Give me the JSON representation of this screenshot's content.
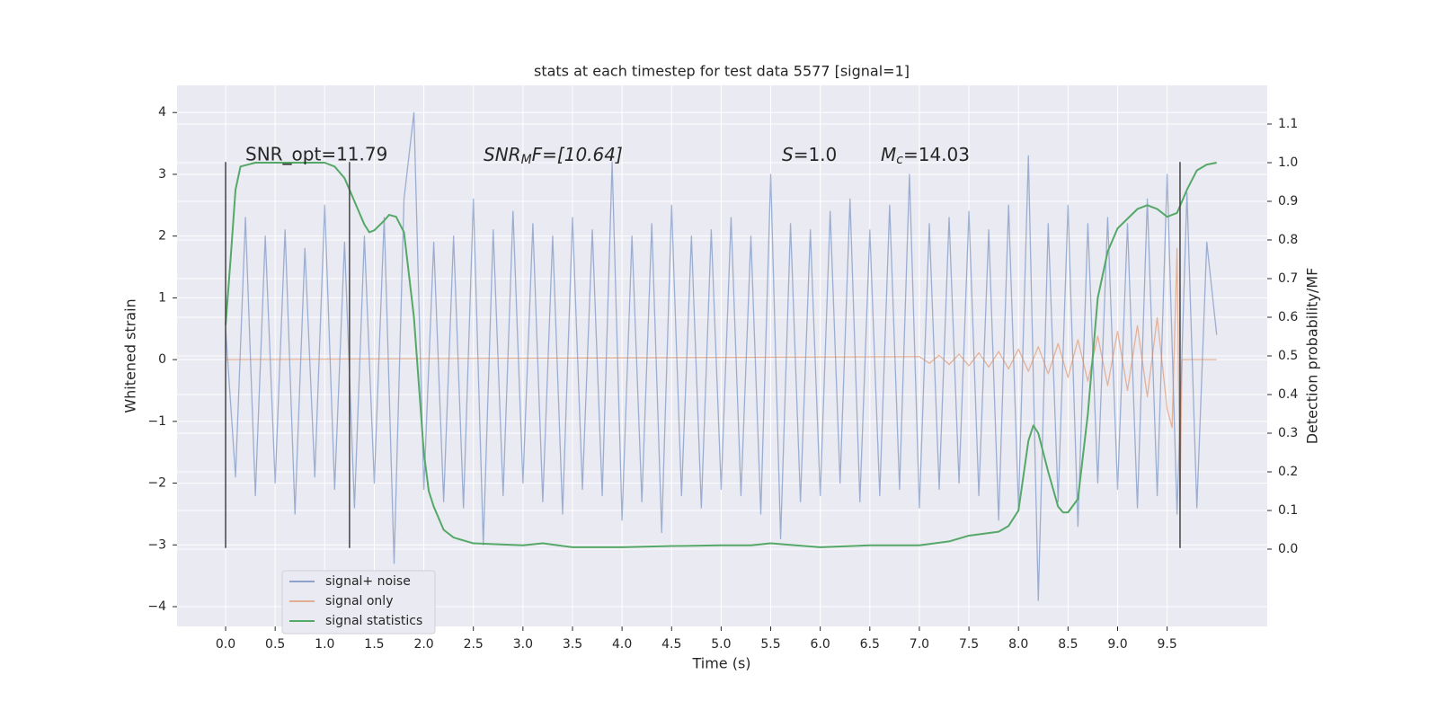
{
  "chart_data": {
    "type": "line",
    "title": "stats at each timestep for test data 5577 [signal=1]",
    "xlabel": "Time (s)",
    "ylabel": "Whitened strain",
    "y2label": "Detection probability/MF",
    "xlim": [
      -0.49,
      10.51
    ],
    "ylim": [
      -4.32,
      4.44
    ],
    "y2lim": [
      -0.2,
      1.2
    ],
    "xticks": [
      {
        "value": 0,
        "label": "0.0"
      },
      {
        "value": 0.5,
        "label": "0.5"
      },
      {
        "value": 1,
        "label": "1.0"
      },
      {
        "value": 1.5,
        "label": "1.5"
      },
      {
        "value": 2,
        "label": "2.0"
      },
      {
        "value": 2.5,
        "label": "2.5"
      },
      {
        "value": 3,
        "label": "3.0"
      },
      {
        "value": 3.5,
        "label": "3.5"
      },
      {
        "value": 4,
        "label": "4.0"
      },
      {
        "value": 4.5,
        "label": "4.5"
      },
      {
        "value": 5,
        "label": "5.0"
      },
      {
        "value": 5.5,
        "label": "5.5"
      },
      {
        "value": 6,
        "label": "6.0"
      },
      {
        "value": 6.5,
        "label": "6.5"
      },
      {
        "value": 7,
        "label": "7.0"
      },
      {
        "value": 7.5,
        "label": "7.5"
      },
      {
        "value": 8,
        "label": "8.0"
      },
      {
        "value": 8.5,
        "label": "8.5"
      },
      {
        "value": 9,
        "label": "9.0"
      },
      {
        "value": 9.5,
        "label": "9.5"
      }
    ],
    "yticks": [
      {
        "value": -4,
        "label": "−4"
      },
      {
        "value": -3,
        "label": "−3"
      },
      {
        "value": -2,
        "label": "−2"
      },
      {
        "value": -1,
        "label": "−1"
      },
      0,
      1,
      2,
      3,
      4
    ],
    "y2ticks": [
      {
        "value": 0,
        "label": "0.0"
      },
      {
        "value": 0.1,
        "label": "0.1"
      },
      {
        "value": 0.2,
        "label": "0.2"
      },
      {
        "value": 0.3,
        "label": "0.3"
      },
      {
        "value": 0.4,
        "label": "0.4"
      },
      {
        "value": 0.5,
        "label": "0.5"
      },
      {
        "value": 0.6,
        "label": "0.6"
      },
      {
        "value": 0.7,
        "label": "0.7"
      },
      {
        "value": 0.8,
        "label": "0.8"
      },
      {
        "value": 0.9,
        "label": "0.9"
      },
      {
        "value": 1,
        "label": "1.0"
      },
      {
        "value": 1.1,
        "label": "1.1"
      }
    ],
    "grid": true,
    "legend": "lower left",
    "annotations": [
      {
        "text": "SNR_opt=11.79"
      },
      {
        "base": "SNR",
        "sub": "M",
        "rest": "F=[10.64]"
      },
      {
        "base": "S",
        "rest": "=1.0"
      },
      {
        "base": "M",
        "sub": "c",
        "rest": "=14.03"
      }
    ],
    "vlines": {
      "x": [
        0,
        1.25,
        9.63
      ],
      "ylim": [
        -3.05,
        3.2
      ],
      "color": "#444444"
    },
    "series": [
      {
        "name": "signal+ noise",
        "color": "#4c72b0",
        "axis": "y",
        "x": [
          0,
          0.1,
          0.2,
          0.3,
          0.4,
          0.5,
          0.6,
          0.7,
          0.8,
          0.9,
          1.0,
          1.1,
          1.2,
          1.3,
          1.4,
          1.5,
          1.6,
          1.7,
          1.8,
          1.9,
          2.0,
          2.1,
          2.2,
          2.3,
          2.4,
          2.5,
          2.6,
          2.7,
          2.8,
          2.9,
          3.0,
          3.1,
          3.2,
          3.3,
          3.4,
          3.5,
          3.6,
          3.7,
          3.8,
          3.9,
          4.0,
          4.1,
          4.2,
          4.3,
          4.4,
          4.5,
          4.6,
          4.7,
          4.8,
          4.9,
          5.0,
          5.1,
          5.2,
          5.3,
          5.4,
          5.5,
          5.6,
          5.7,
          5.8,
          5.9,
          6.0,
          6.1,
          6.2,
          6.3,
          6.4,
          6.5,
          6.6,
          6.7,
          6.8,
          6.9,
          7.0,
          7.1,
          7.2,
          7.3,
          7.4,
          7.5,
          7.6,
          7.7,
          7.8,
          7.9,
          8.0,
          8.1,
          8.2,
          8.3,
          8.4,
          8.5,
          8.6,
          8.7,
          8.8,
          8.9,
          9.0,
          9.1,
          9.2,
          9.3,
          9.4,
          9.5,
          9.6,
          9.7,
          9.8,
          9.9,
          10.0
        ],
        "values": [
          0.5,
          -1.9,
          2.3,
          -2.2,
          2.0,
          -2.0,
          2.1,
          -2.5,
          1.8,
          -1.9,
          2.5,
          -2.1,
          1.9,
          -2.4,
          2.0,
          -2.0,
          2.3,
          -3.3,
          2.6,
          4.0,
          -2.1,
          1.9,
          -2.3,
          2.0,
          -2.4,
          2.6,
          -3.0,
          2.1,
          -2.2,
          2.4,
          -2.0,
          2.2,
          -2.3,
          2.0,
          -2.5,
          2.3,
          -2.1,
          2.1,
          -2.2,
          3.2,
          -2.6,
          2.0,
          -2.3,
          2.2,
          -2.8,
          2.5,
          -2.2,
          2.0,
          -2.4,
          2.1,
          -2.1,
          2.3,
          -2.2,
          2.0,
          -2.5,
          3.0,
          -2.9,
          2.2,
          -2.3,
          2.1,
          -2.2,
          2.4,
          -2.0,
          2.6,
          -2.3,
          2.1,
          -2.2,
          2.5,
          -2.1,
          3.0,
          -2.4,
          2.2,
          -2.1,
          2.3,
          -2.0,
          2.4,
          -2.2,
          2.1,
          -2.6,
          2.5,
          -2.4,
          3.3,
          -3.9,
          2.2,
          -2.3,
          2.5,
          -2.7,
          2.2,
          -2.0,
          2.3,
          -2.1,
          2.2,
          -2.4,
          2.6,
          -2.2,
          3.0,
          -2.5,
          2.7,
          -2.4,
          1.9,
          0.4
        ]
      },
      {
        "name": "signal only",
        "color": "#dd8452",
        "axis": "y",
        "x": [
          0,
          7.0,
          7.1,
          7.2,
          7.3,
          7.4,
          7.5,
          7.6,
          7.7,
          7.8,
          7.9,
          8.0,
          8.1,
          8.2,
          8.3,
          8.4,
          8.5,
          8.6,
          8.7,
          8.8,
          8.9,
          9.0,
          9.1,
          9.2,
          9.3,
          9.4,
          9.5,
          9.55,
          9.6,
          9.63,
          9.65,
          10.0
        ],
        "values": [
          0,
          0.05,
          -0.06,
          0.07,
          -0.08,
          0.09,
          -0.1,
          0.11,
          -0.12,
          0.13,
          -0.15,
          0.17,
          -0.19,
          0.21,
          -0.23,
          0.26,
          -0.29,
          0.32,
          -0.35,
          0.38,
          -0.42,
          0.46,
          -0.5,
          0.55,
          -0.6,
          0.68,
          -0.8,
          -1.1,
          1.8,
          -2.3,
          0,
          0
        ]
      },
      {
        "name": "signal statistics",
        "color": "#55a868",
        "axis": "y2",
        "x": [
          0,
          0.05,
          0.1,
          0.15,
          0.3,
          1.0,
          1.1,
          1.2,
          1.3,
          1.4,
          1.45,
          1.5,
          1.6,
          1.65,
          1.72,
          1.8,
          1.9,
          2.0,
          2.05,
          2.1,
          2.2,
          2.3,
          2.5,
          3.0,
          3.2,
          3.5,
          4.0,
          4.5,
          5.0,
          5.3,
          5.5,
          6.0,
          6.5,
          7.0,
          7.3,
          7.5,
          7.8,
          7.9,
          8.0,
          8.1,
          8.15,
          8.2,
          8.3,
          8.4,
          8.45,
          8.5,
          8.6,
          8.7,
          8.8,
          8.9,
          9.0,
          9.2,
          9.3,
          9.4,
          9.5,
          9.6,
          9.7,
          9.8,
          9.9,
          10.0
        ],
        "values": [
          0.58,
          0.75,
          0.93,
          0.99,
          1.0,
          1.0,
          0.99,
          0.96,
          0.9,
          0.84,
          0.82,
          0.825,
          0.85,
          0.865,
          0.86,
          0.82,
          0.6,
          0.25,
          0.15,
          0.11,
          0.05,
          0.03,
          0.015,
          0.01,
          0.015,
          0.005,
          0.005,
          0.008,
          0.01,
          0.01,
          0.015,
          0.005,
          0.01,
          0.01,
          0.02,
          0.035,
          0.045,
          0.06,
          0.1,
          0.28,
          0.32,
          0.3,
          0.2,
          0.11,
          0.095,
          0.095,
          0.13,
          0.35,
          0.65,
          0.77,
          0.83,
          0.88,
          0.89,
          0.88,
          0.86,
          0.87,
          0.93,
          0.98,
          0.995,
          1.0
        ]
      }
    ]
  }
}
